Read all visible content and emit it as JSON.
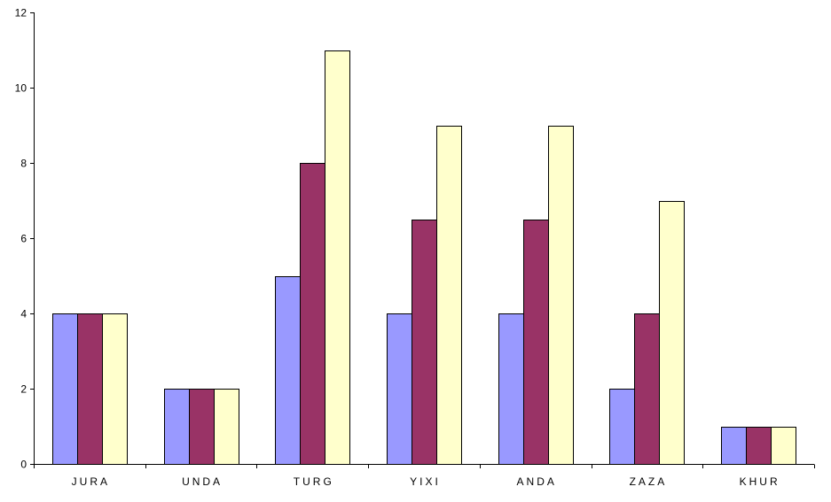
{
  "chart_data": {
    "type": "bar",
    "categories": [
      "JURA",
      "UNDA",
      "TURG",
      "YIXI",
      "ANDA",
      "ZAZA",
      "KHUR"
    ],
    "series": [
      {
        "values": [
          4,
          2,
          5,
          4,
          4,
          2,
          1
        ],
        "color": "#9999ff"
      },
      {
        "values": [
          4,
          2,
          8,
          6.5,
          6.5,
          4,
          1
        ],
        "color": "#993366"
      },
      {
        "values": [
          4,
          2,
          11,
          9,
          9,
          7,
          1
        ],
        "color": "#ffffcc"
      }
    ],
    "yticks": [
      0,
      2,
      4,
      6,
      8,
      10,
      12
    ],
    "ylim": [
      0,
      12
    ],
    "grid": false,
    "legend": "none"
  }
}
